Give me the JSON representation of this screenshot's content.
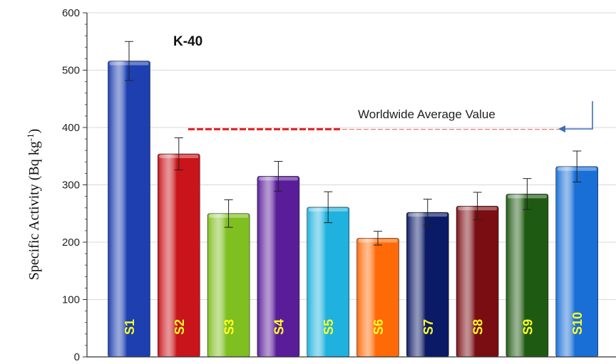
{
  "chart_data": {
    "type": "bar",
    "title": "K-40",
    "xlabel": "",
    "ylabel": "Specific Activity (Bq kg",
    "ylabel_sup": "-1",
    "ylabel_close": ")",
    "ylim": [
      0,
      600
    ],
    "yticks": [
      0,
      100,
      200,
      300,
      400,
      500,
      600
    ],
    "grid": true,
    "categories": [
      "S1",
      "S2",
      "S3",
      "S4",
      "S5",
      "S6",
      "S7",
      "S8",
      "S9",
      "S10"
    ],
    "values": [
      516,
      354,
      250,
      315,
      261,
      207,
      252,
      263,
      284,
      332
    ],
    "errors": [
      34,
      28,
      24,
      26,
      27,
      12,
      23,
      24,
      27,
      27
    ],
    "colors": [
      "#1d3fb0",
      "#c8141a",
      "#7fbf1f",
      "#5a1d9a",
      "#1fb2de",
      "#ff6a08",
      "#0b1a66",
      "#7a0d12",
      "#1f5a12",
      "#1a6fd6"
    ],
    "reference_line": {
      "value": 397,
      "label": "Worldwide Average Value",
      "color": "#e02020"
    }
  }
}
